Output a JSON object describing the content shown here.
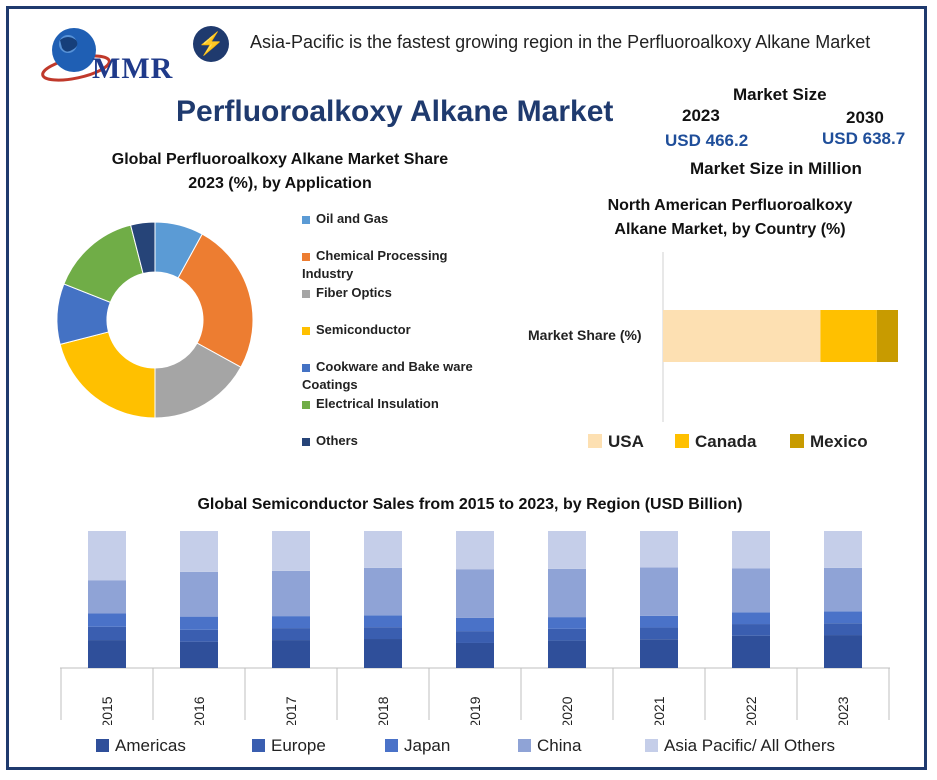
{
  "logo": {
    "text": "MMR"
  },
  "banner": {
    "icon": "lightning-icon",
    "text": "Asia-Pacific is the fastest growing region in the Perfluoroalkoxy Alkane Market"
  },
  "title": "Perfluoroalkoxy Alkane Market",
  "market_size": {
    "heading": "Market Size",
    "year_a": "2023",
    "value_a": "USD 466.2",
    "year_b": "2030",
    "value_b": "USD 638.7",
    "footnote": "Market Size in Million"
  },
  "colors": {
    "oil_gas": "#5b9bd5",
    "chemical": "#ed7d31",
    "fiber": "#a5a5a5",
    "semiconductor": "#ffc000",
    "cookware": "#4472c4",
    "electrical": "#70ad47",
    "others": "#264478",
    "usa": "#fde0b2",
    "canada": "#ffc000",
    "mexico": "#c89b00",
    "americas": "#2f4f9a",
    "europe": "#3a5eb0",
    "japan": "#4a72c8",
    "china": "#8fa3d6",
    "apac": "#c5cee9",
    "frame": "#1f3a6e"
  },
  "chart_data": [
    {
      "type": "pie",
      "title_line1": "Global Perfluoroalkoxy Alkane Market Share",
      "title_line2": "2023 (%), by Application",
      "labels": [
        "Oil and Gas",
        "Chemical Processing Industry",
        "Fiber Optics",
        "Semiconductor",
        "Cookware and Bake ware Coatings",
        "Electrical Insulation",
        "Others"
      ],
      "values": [
        8,
        25,
        17,
        21,
        10,
        15,
        4
      ]
    },
    {
      "type": "bar",
      "orientation": "horizontal-stacked",
      "title_line1": "North American Perfluoroalkoxy",
      "title_line2": "Alkane Market, by Country (%)",
      "categories": [
        "Market Share (%)"
      ],
      "series": [
        {
          "name": "USA",
          "values": [
            67
          ]
        },
        {
          "name": "Canada",
          "values": [
            24
          ]
        },
        {
          "name": "Mexico",
          "values": [
            9
          ]
        }
      ]
    },
    {
      "type": "bar",
      "orientation": "vertical-stacked",
      "title": "Global Semiconductor Sales from 2015 to 2023, by Region (USD Billion)",
      "categories": [
        "2015",
        "2016",
        "2017",
        "2018",
        "2019",
        "2020",
        "2021",
        "2022",
        "2023"
      ],
      "series": [
        {
          "name": "Americas",
          "values": [
            21,
            20,
            21,
            22,
            19,
            21,
            22,
            25,
            25
          ]
        },
        {
          "name": "Europe",
          "values": [
            10,
            9,
            9,
            9,
            9,
            9,
            9,
            9,
            9
          ]
        },
        {
          "name": "Japan",
          "values": [
            10,
            10,
            9,
            9,
            10,
            9,
            9,
            9,
            9
          ]
        },
        {
          "name": "China",
          "values": [
            25,
            34,
            34,
            36,
            37,
            37,
            37,
            34,
            33
          ]
        },
        {
          "name": "Asia Pacific/ All Others",
          "values": [
            37,
            31,
            30,
            28,
            29,
            29,
            28,
            29,
            28
          ]
        }
      ]
    }
  ]
}
